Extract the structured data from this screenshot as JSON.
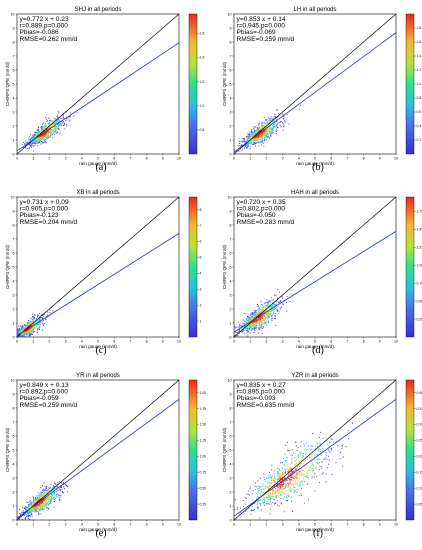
{
  "chart_data": [
    {
      "type": "scatter",
      "caption": "(a)",
      "title": "SHJ in all periods",
      "xlabel": "rain gauge (mm/d)",
      "ylabel": "CHIRPS QPE (mm/d)",
      "xlim": [
        0,
        10
      ],
      "ylim": [
        0,
        10
      ],
      "ticks": [
        0,
        1,
        2,
        3,
        4,
        5,
        6,
        7,
        8,
        9,
        10
      ],
      "fit": {
        "slope": 0.772,
        "intercept": 0.23
      },
      "identity_line": true,
      "stats": [
        "y=0.772 x + 0.23",
        "r=0.889,p=0.000",
        "Pbias=-0.086",
        "RMSE=0.262 mm/d"
      ],
      "density_cloud": {
        "center": [
          1.6,
          1.45
        ],
        "spread": [
          0.55,
          0.5
        ]
      },
      "colorbar": {
        "ticks": [
          "0.5",
          "1.0",
          "1.5",
          "2.0",
          "2.5"
        ],
        "range": [
          0,
          2.9
        ]
      }
    },
    {
      "type": "scatter",
      "caption": "(b)",
      "title": "LH in all periods",
      "xlabel": "rain gauge (mm/d)",
      "ylabel": "CHIRPS QPE (mm/d)",
      "xlim": [
        0,
        10
      ],
      "ylim": [
        0,
        10
      ],
      "ticks": [
        0,
        1,
        2,
        3,
        4,
        5,
        6,
        7,
        8,
        9,
        10
      ],
      "fit": {
        "slope": 0.853,
        "intercept": 0.14
      },
      "identity_line": true,
      "stats": [
        "y=0.853 x + 0.14",
        "r=0.945,p=0.000",
        "Pbias=-0.069",
        "RMSE=0.259 mm/d"
      ],
      "density_cloud": {
        "center": [
          1.5,
          1.4
        ],
        "spread": [
          0.6,
          0.55
        ]
      },
      "colorbar": {
        "ticks": [
          "0.2",
          "0.4",
          "0.6",
          "0.8",
          "1.0",
          "1.2",
          "1.4",
          "1.6",
          "1.8"
        ],
        "range": [
          0,
          2.0
        ]
      }
    },
    {
      "type": "scatter",
      "caption": "(c)",
      "title": "XB in all periods",
      "xlabel": "rain gauge (mm/d)",
      "ylabel": "CHIRPS QPE (mm/d)",
      "xlim": [
        0,
        10
      ],
      "ylim": [
        0,
        10
      ],
      "ticks": [
        0,
        1,
        2,
        3,
        4,
        5,
        6,
        7,
        8,
        9,
        10
      ],
      "fit": {
        "slope": 0.731,
        "intercept": 0.09
      },
      "identity_line": true,
      "stats": [
        "y=0.731 x + 0.09",
        "r=0.905,p=0.000",
        "Pbias=-0.123",
        "RMSE=0.204 mm/d"
      ],
      "density_cloud": {
        "center": [
          0.6,
          0.55
        ],
        "spread": [
          0.45,
          0.4
        ]
      },
      "colorbar": {
        "ticks": [
          "1",
          "2",
          "3",
          "4",
          "5",
          "6",
          "7",
          "8"
        ],
        "range": [
          0,
          8.8
        ]
      }
    },
    {
      "type": "scatter",
      "caption": "(d)",
      "title": "HAH in all periods",
      "xlabel": "rain gauge (mm/d)",
      "ylabel": "CHIRPS QPE (mm/d)",
      "xlim": [
        0,
        10
      ],
      "ylim": [
        0,
        10
      ],
      "ticks": [
        0,
        1,
        2,
        3,
        4,
        5,
        6,
        7,
        8,
        9,
        10
      ],
      "fit": {
        "slope": 0.72,
        "intercept": 0.35
      },
      "identity_line": true,
      "stats": [
        "y=0.720 x + 0.35",
        "r=0.802,p=0.000",
        "Pbias=-0.050",
        "RMSE=0.283 mm/d"
      ],
      "density_cloud": {
        "center": [
          1.4,
          1.3
        ],
        "spread": [
          0.65,
          0.6
        ]
      },
      "colorbar": {
        "ticks": [
          "0.25",
          "0.50",
          "0.75",
          "1.00",
          "1.25",
          "1.50",
          "1.75"
        ],
        "range": [
          0,
          1.95
        ]
      }
    },
    {
      "type": "scatter",
      "caption": "(e)",
      "title": "YR in all periods",
      "xlabel": "rain gauge (mm/d)",
      "ylabel": "CHIRPS QPE (mm/d)",
      "xlim": [
        0,
        10
      ],
      "ylim": [
        0,
        10
      ],
      "ticks": [
        0,
        1,
        2,
        3,
        4,
        5,
        6,
        7,
        8,
        9,
        10
      ],
      "fit": {
        "slope": 0.849,
        "intercept": 0.13
      },
      "identity_line": true,
      "stats": [
        "y=0.849 x + 0.13",
        "r=0.892,p=0.000",
        "Pbias=-0.059",
        "RMSE=0.259 mm/d"
      ],
      "density_cloud": {
        "center": [
          1.3,
          1.2
        ],
        "spread": [
          0.6,
          0.55
        ]
      },
      "colorbar": {
        "ticks": [
          "0.25",
          "0.50",
          "0.75",
          "1.00",
          "1.25",
          "1.50",
          "1.75",
          "2.00"
        ],
        "range": [
          0,
          2.2
        ]
      }
    },
    {
      "type": "scatter",
      "caption": "(f)",
      "title": "YZR in all periods",
      "xlabel": "rain gauge (mm/d)",
      "ylabel": "CHIRPS QPE (mm/d)",
      "xlim": [
        0,
        10
      ],
      "ylim": [
        0,
        10
      ],
      "ticks": [
        0,
        1,
        2,
        3,
        4,
        5,
        6,
        7,
        8,
        9,
        10
      ],
      "fit": {
        "slope": 0.835,
        "intercept": 0.27
      },
      "identity_line": true,
      "stats": [
        "y=0.835 x + 0.27",
        "r=0.895,p=0.000",
        "Pbias=-0.093",
        "RMSE=0.635 mm/d"
      ],
      "density_cloud": {
        "center": [
          3.0,
          2.8
        ],
        "spread": [
          1.4,
          1.3
        ]
      },
      "colorbar": {
        "ticks": [
          "0.05",
          "0.10",
          "0.15",
          "0.20",
          "0.25",
          "0.30",
          "0.35",
          "0.40"
        ],
        "range": [
          0,
          0.44
        ]
      }
    }
  ],
  "colors": {
    "fit_line": "#1f2fe6",
    "identity_line": "#000000",
    "low_density": "#2323c8",
    "high_density": "#e02020"
  }
}
